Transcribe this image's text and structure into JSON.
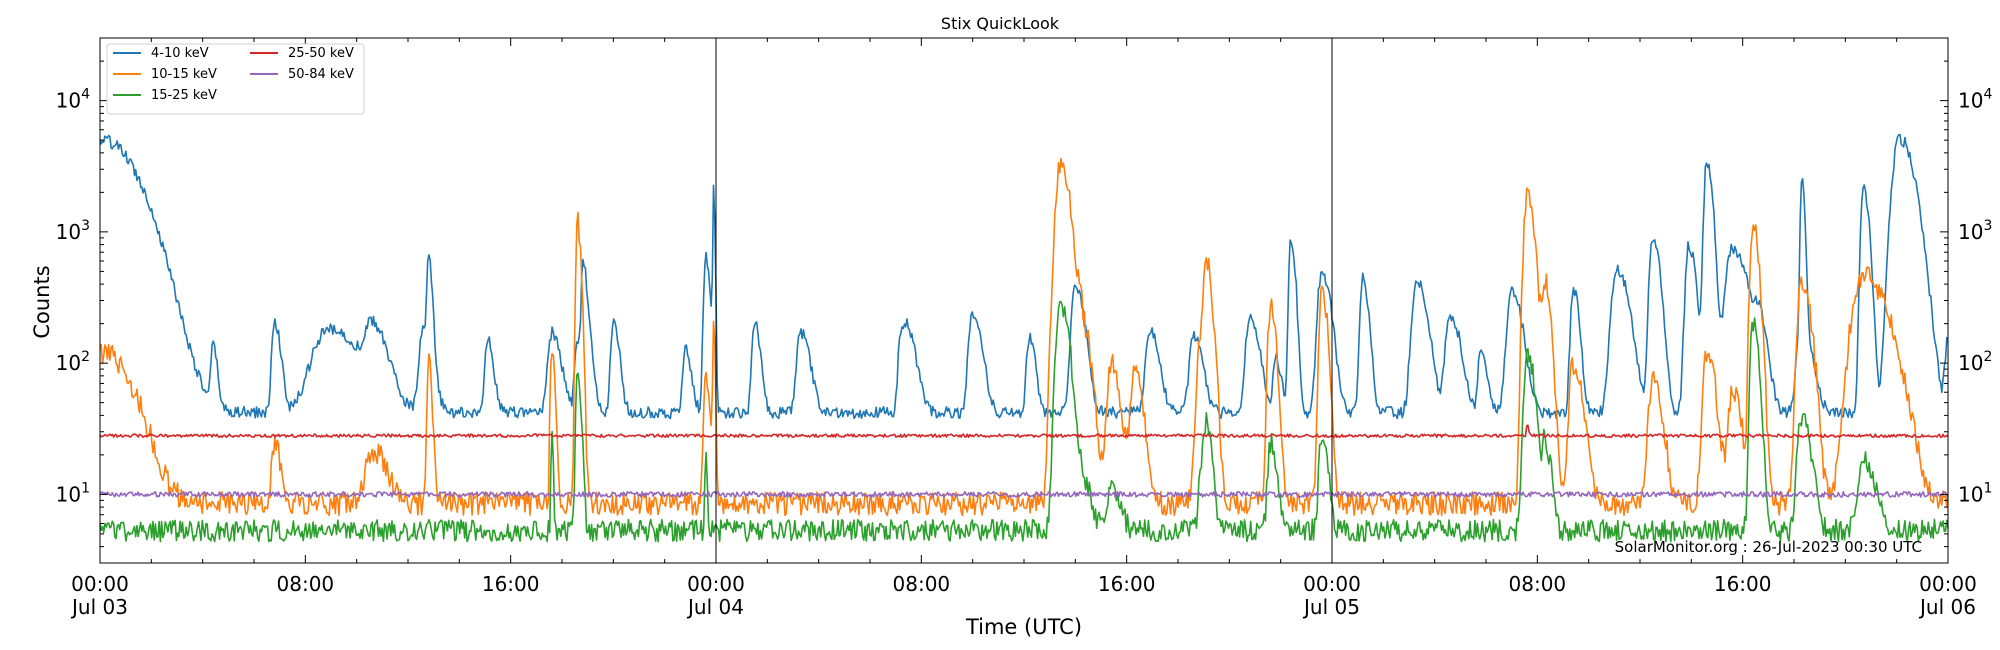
{
  "chart_data": {
    "type": "line",
    "title": "Stix QuickLook",
    "xlabel": "Time (UTC)",
    "ylabel": "Counts",
    "yscale": "log",
    "ylim": [
      3,
      30000
    ],
    "xlim_hours": [
      0,
      72
    ],
    "x_ticks": [
      {
        "hour": 0,
        "label": "00:00",
        "sub": "Jul 03"
      },
      {
        "hour": 8,
        "label": "08:00",
        "sub": ""
      },
      {
        "hour": 16,
        "label": "16:00",
        "sub": ""
      },
      {
        "hour": 24,
        "label": "00:00",
        "sub": "Jul 04"
      },
      {
        "hour": 32,
        "label": "08:00",
        "sub": ""
      },
      {
        "hour": 40,
        "label": "16:00",
        "sub": ""
      },
      {
        "hour": 48,
        "label": "00:00",
        "sub": "Jul 05"
      },
      {
        "hour": 56,
        "label": "08:00",
        "sub": ""
      },
      {
        "hour": 64,
        "label": "16:00",
        "sub": ""
      },
      {
        "hour": 72,
        "label": "00:00",
        "sub": "Jul 06"
      }
    ],
    "y_ticks": [
      {
        "value": 10,
        "label": "10",
        "exp": "1"
      },
      {
        "value": 100,
        "label": "10",
        "exp": "2"
      },
      {
        "value": 1000,
        "label": "10",
        "exp": "3"
      },
      {
        "value": 10000,
        "label": "10",
        "exp": "4"
      }
    ],
    "day_lines_hours": [
      24,
      48
    ],
    "legend_position": "top-left",
    "series": [
      {
        "name": "4-10 keV",
        "color": "#1f77b4",
        "base": 42,
        "noise": 0.045,
        "peaks": [
          [
            0.1,
            5000,
            1.2
          ],
          [
            1.8,
            130,
            0.12
          ],
          [
            4.4,
            130,
            0.15
          ],
          [
            6.8,
            210,
            0.2
          ],
          [
            8.9,
            180,
            1.2
          ],
          [
            10.6,
            160,
            0.5
          ],
          [
            12.6,
            180,
            0.3
          ],
          [
            12.8,
            520,
            0.12
          ],
          [
            15.1,
            150,
            0.2
          ],
          [
            17.6,
            170,
            0.3
          ],
          [
            18.8,
            390,
            0.1
          ],
          [
            18.6,
            140,
            0.2
          ],
          [
            18.9,
            180,
            0.2
          ],
          [
            18.9,
            130,
            0.2
          ],
          [
            20.0,
            200,
            0.2
          ],
          [
            22.8,
            130,
            0.2
          ],
          [
            23.6,
            650,
            0.15
          ],
          [
            23.9,
            2000,
            0.05
          ],
          [
            25.5,
            200,
            0.2
          ],
          [
            27.3,
            170,
            0.3
          ],
          [
            31.2,
            160,
            0.2
          ],
          [
            31.5,
            150,
            0.3
          ],
          [
            34.0,
            240,
            0.3
          ],
          [
            36.2,
            160,
            0.2
          ],
          [
            38.0,
            370,
            0.3
          ],
          [
            40.9,
            180,
            0.3
          ],
          [
            42.6,
            160,
            0.3
          ],
          [
            44.8,
            230,
            0.3
          ],
          [
            45.8,
            110,
            0.2
          ],
          [
            46.4,
            900,
            0.15
          ],
          [
            47.6,
            500,
            0.3
          ],
          [
            49.2,
            440,
            0.2
          ],
          [
            51.3,
            420,
            0.35
          ],
          [
            52.6,
            230,
            0.35
          ],
          [
            53.8,
            130,
            0.2
          ],
          [
            55.0,
            350,
            0.35
          ],
          [
            57.4,
            370,
            0.2
          ],
          [
            59.1,
            520,
            0.4
          ],
          [
            60.5,
            900,
            0.25
          ],
          [
            61.9,
            780,
            0.25
          ],
          [
            62.6,
            3400,
            0.2
          ],
          [
            63.6,
            750,
            0.5
          ],
          [
            64.6,
            200,
            0.3
          ],
          [
            66.3,
            200,
            0.35
          ],
          [
            66.3,
            2500,
            0.1
          ],
          [
            68.7,
            2100,
            0.2
          ],
          [
            70.1,
            5200,
            0.5
          ],
          [
            72.0,
            160,
            0.2
          ]
        ]
      },
      {
        "name": "10-15 keV",
        "color": "#ff7f0e",
        "base": 8.5,
        "noise": 0.09,
        "peaks": [
          [
            0.1,
            120,
            1.0
          ],
          [
            6.8,
            25,
            0.2
          ],
          [
            10.6,
            22,
            0.5
          ],
          [
            12.8,
            100,
            0.12
          ],
          [
            17.6,
            140,
            0.1
          ],
          [
            18.6,
            1200,
            0.12
          ],
          [
            23.6,
            80,
            0.15
          ],
          [
            23.9,
            230,
            0.05
          ],
          [
            37.4,
            3000,
            0.35
          ],
          [
            38.3,
            150,
            0.3
          ],
          [
            39.4,
            100,
            0.3
          ],
          [
            40.3,
            80,
            0.3
          ],
          [
            42.9,
            160,
            0.3
          ],
          [
            43.1,
            500,
            0.2
          ],
          [
            45.6,
            260,
            0.2
          ],
          [
            47.6,
            340,
            0.2
          ],
          [
            55.6,
            1800,
            0.25
          ],
          [
            56.3,
            400,
            0.2
          ],
          [
            57.4,
            100,
            0.3
          ],
          [
            60.5,
            80,
            0.3
          ],
          [
            62.6,
            110,
            0.3
          ],
          [
            63.6,
            60,
            0.3
          ],
          [
            64.4,
            1200,
            0.2
          ],
          [
            66.3,
            440,
            0.3
          ],
          [
            68.7,
            480,
            0.8
          ]
        ]
      },
      {
        "name": "15-25 keV",
        "color": "#2ca02c",
        "base": 5.3,
        "noise": 0.085,
        "peaks": [
          [
            17.6,
            35,
            0.05
          ],
          [
            18.6,
            90,
            0.12
          ],
          [
            23.6,
            22,
            0.05
          ],
          [
            37.4,
            300,
            0.3
          ],
          [
            38.3,
            12,
            0.3
          ],
          [
            39.4,
            11,
            0.3
          ],
          [
            42.9,
            15,
            0.2
          ],
          [
            43.1,
            30,
            0.2
          ],
          [
            45.6,
            25,
            0.2
          ],
          [
            47.6,
            30,
            0.2
          ],
          [
            55.6,
            120,
            0.25
          ],
          [
            56.3,
            25,
            0.2
          ],
          [
            64.4,
            200,
            0.2
          ],
          [
            66.3,
            40,
            0.3
          ],
          [
            68.7,
            18,
            0.4
          ]
        ]
      },
      {
        "name": "25-50 keV",
        "color": "#d62728",
        "base": 28,
        "noise": 0.012,
        "peaks": [
          [
            55.6,
            35,
            0.05
          ]
        ]
      },
      {
        "name": "50-84 keV",
        "color": "#9467bd",
        "base": 10,
        "noise": 0.02,
        "peaks": []
      }
    ]
  },
  "credit": "SolarMonitor.org : 26-Jul-2023 00:30 UTC"
}
